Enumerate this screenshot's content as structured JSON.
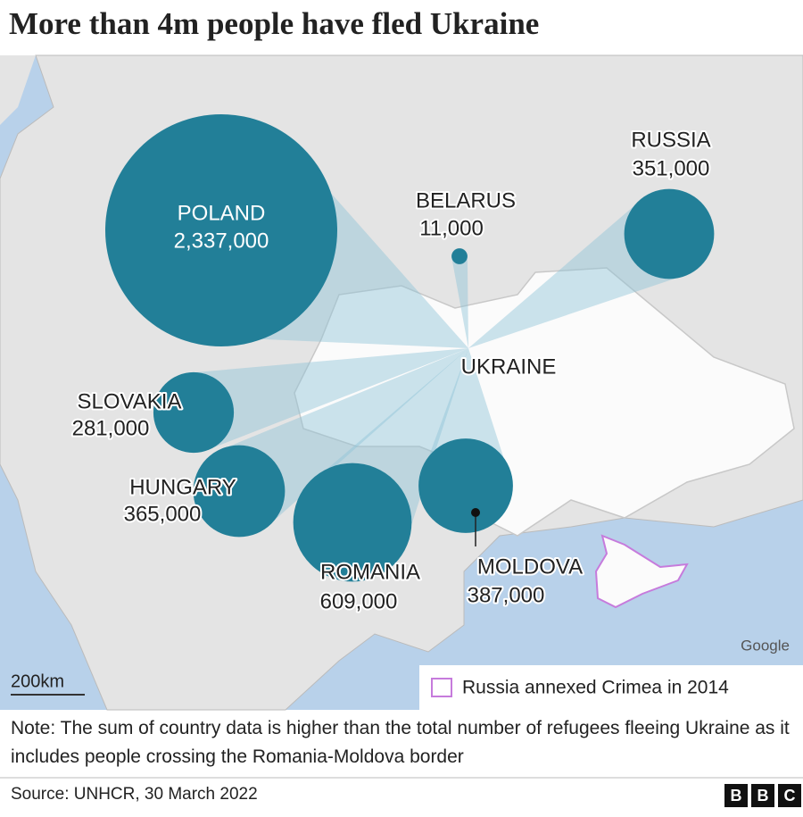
{
  "title": "More than 4m people have fled Ukraine",
  "countries": [
    {
      "name": "POLAND",
      "value": 2337000,
      "value_label": "2,337,000"
    },
    {
      "name": "RUSSIA",
      "value": 351000,
      "value_label": "351,000"
    },
    {
      "name": "BELARUS",
      "value": 11000,
      "value_label": "11,000"
    },
    {
      "name": "SLOVAKIA",
      "value": 281000,
      "value_label": "281,000"
    },
    {
      "name": "HUNGARY",
      "value": 365000,
      "value_label": "365,000"
    },
    {
      "name": "ROMANIA",
      "value": 609000,
      "value_label": "609,000"
    },
    {
      "name": "MOLDOVA",
      "value": 387000,
      "value_label": "387,000"
    }
  ],
  "origin": "UKRAINE",
  "map_credit": "Google",
  "scale": "200km",
  "legend": "Russia annexed Crimea in 2014",
  "note": "Note: The sum of country data is higher than the total number of refugees fleeing Ukraine as it includes people crossing the Romania-Moldova border",
  "source": "Source: UNHCR, 30 March 2022",
  "logo": [
    "B",
    "B",
    "C"
  ]
}
